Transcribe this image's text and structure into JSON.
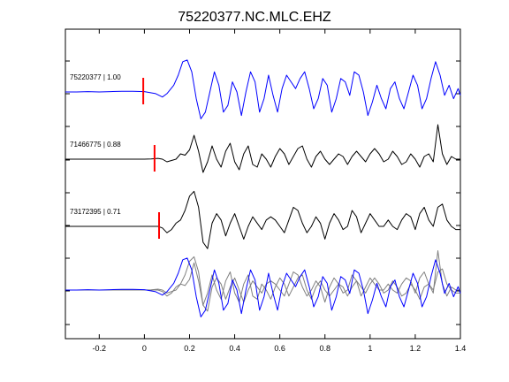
{
  "chart_data": {
    "type": "line",
    "title": "75220377.NC.MLC.EHZ",
    "xlabel": "",
    "ylabel": "",
    "xlim": [
      -0.35,
      1.4
    ],
    "x_ticks": [
      "-0.2",
      "0",
      "0.2",
      "0.4",
      "0.6",
      "0.8",
      "1",
      "1.2",
      "1.4"
    ],
    "x_tick_values": [
      -0.2,
      0,
      0.2,
      0.4,
      0.6,
      0.8,
      1.0,
      1.2,
      1.4
    ],
    "grid": false,
    "colors": {
      "master": "#0000ff",
      "neighbor": "#000000",
      "overlay_neighbor": "#808080",
      "pick": "#ff0000"
    },
    "traces": [
      {
        "label": "75220377 | 1.00",
        "color": "#0000ff",
        "pick": -0.005,
        "x": [
          -0.35,
          -0.3,
          -0.25,
          -0.2,
          -0.15,
          -0.1,
          -0.05,
          0.0,
          0.05,
          0.08,
          0.1,
          0.13,
          0.15,
          0.17,
          0.19,
          0.21,
          0.23,
          0.25,
          0.27,
          0.29,
          0.31,
          0.33,
          0.35,
          0.37,
          0.39,
          0.41,
          0.43,
          0.45,
          0.47,
          0.49,
          0.51,
          0.53,
          0.55,
          0.57,
          0.59,
          0.61,
          0.63,
          0.65,
          0.67,
          0.69,
          0.71,
          0.73,
          0.75,
          0.77,
          0.79,
          0.81,
          0.83,
          0.85,
          0.87,
          0.89,
          0.91,
          0.93,
          0.95,
          0.97,
          0.99,
          1.01,
          1.03,
          1.05,
          1.07,
          1.09,
          1.11,
          1.13,
          1.15,
          1.17,
          1.19,
          1.21,
          1.23,
          1.25,
          1.27,
          1.29,
          1.31,
          1.33,
          1.35,
          1.37,
          1.39,
          1.4
        ],
        "y": [
          0.0,
          0.0,
          0.01,
          0.0,
          0.01,
          0.02,
          0.02,
          0.01,
          -0.05,
          -0.15,
          -0.05,
          0.2,
          0.5,
          0.9,
          0.95,
          0.6,
          -0.2,
          -0.8,
          -0.6,
          0.0,
          0.6,
          0.2,
          -0.6,
          -0.4,
          0.3,
          0.0,
          -0.7,
          0.0,
          0.6,
          0.3,
          -0.6,
          -0.2,
          0.5,
          -0.1,
          -0.6,
          0.1,
          0.5,
          0.3,
          0.1,
          0.4,
          0.6,
          0.1,
          -0.5,
          -0.2,
          0.4,
          0.2,
          -0.6,
          -0.2,
          0.4,
          0.3,
          -0.1,
          0.6,
          0.5,
          0.0,
          -0.7,
          -0.3,
          0.2,
          -0.2,
          -0.5,
          0.1,
          0.3,
          -0.2,
          -0.5,
          0.0,
          0.5,
          0.2,
          -0.5,
          -0.2,
          0.4,
          0.9,
          0.5,
          -0.1,
          0.2,
          -0.2,
          0.1,
          -0.1
        ]
      },
      {
        "label": "71466775 | 0.88",
        "color": "#000000",
        "pick": 0.045,
        "x": [
          -0.35,
          -0.3,
          -0.25,
          -0.2,
          -0.15,
          -0.1,
          -0.05,
          0.0,
          0.03,
          0.06,
          0.08,
          0.1,
          0.12,
          0.14,
          0.16,
          0.18,
          0.2,
          0.22,
          0.24,
          0.26,
          0.28,
          0.3,
          0.32,
          0.34,
          0.36,
          0.38,
          0.4,
          0.42,
          0.44,
          0.46,
          0.48,
          0.5,
          0.52,
          0.54,
          0.56,
          0.58,
          0.6,
          0.62,
          0.64,
          0.66,
          0.68,
          0.7,
          0.72,
          0.74,
          0.76,
          0.78,
          0.8,
          0.82,
          0.84,
          0.86,
          0.88,
          0.9,
          0.92,
          0.94,
          0.96,
          0.98,
          1.0,
          1.02,
          1.04,
          1.06,
          1.08,
          1.1,
          1.12,
          1.14,
          1.16,
          1.18,
          1.2,
          1.22,
          1.24,
          1.26,
          1.28,
          1.3,
          1.32,
          1.34,
          1.36,
          1.38,
          1.4
        ],
        "y": [
          0.0,
          0.0,
          0.0,
          0.0,
          0.0,
          0.0,
          0.0,
          0.0,
          0.01,
          0.03,
          0.0,
          -0.1,
          -0.05,
          0.0,
          0.2,
          0.15,
          0.35,
          0.9,
          0.3,
          -0.5,
          -0.1,
          0.5,
          0.0,
          -0.3,
          0.3,
          0.6,
          -0.1,
          -0.4,
          0.2,
          0.5,
          -0.2,
          -0.3,
          0.2,
          0.0,
          -0.3,
          0.1,
          0.4,
          0.2,
          -0.2,
          0.1,
          0.4,
          0.5,
          0.0,
          -0.3,
          0.1,
          0.3,
          0.0,
          -0.2,
          0.0,
          0.2,
          0.1,
          -0.2,
          0.1,
          0.3,
          0.1,
          -0.1,
          0.2,
          0.4,
          0.2,
          -0.1,
          0.0,
          0.3,
          0.1,
          -0.2,
          -0.1,
          0.2,
          0.0,
          -0.3,
          0.1,
          0.2,
          -0.1,
          1.3,
          0.2,
          -0.2,
          0.1,
          0.0,
          0.0
        ]
      },
      {
        "label": "73172395 | 0.71",
        "color": "#000000",
        "pick": 0.065,
        "x": [
          -0.35,
          -0.3,
          -0.25,
          -0.2,
          -0.15,
          -0.1,
          -0.05,
          0.0,
          0.03,
          0.06,
          0.08,
          0.1,
          0.12,
          0.14,
          0.16,
          0.18,
          0.2,
          0.22,
          0.24,
          0.26,
          0.28,
          0.3,
          0.32,
          0.34,
          0.36,
          0.38,
          0.4,
          0.42,
          0.44,
          0.46,
          0.48,
          0.5,
          0.52,
          0.54,
          0.56,
          0.58,
          0.6,
          0.62,
          0.64,
          0.66,
          0.68,
          0.7,
          0.72,
          0.74,
          0.76,
          0.78,
          0.8,
          0.82,
          0.84,
          0.86,
          0.88,
          0.9,
          0.92,
          0.94,
          0.96,
          0.98,
          1.0,
          1.02,
          1.04,
          1.06,
          1.08,
          1.1,
          1.12,
          1.14,
          1.16,
          1.18,
          1.2,
          1.22,
          1.24,
          1.26,
          1.28,
          1.3,
          1.32,
          1.34,
          1.36,
          1.38,
          1.4
        ],
        "y": [
          0.0,
          0.0,
          0.0,
          0.0,
          0.0,
          0.0,
          0.0,
          0.0,
          0.0,
          0.0,
          -0.05,
          -0.2,
          -0.1,
          0.1,
          0.2,
          0.5,
          0.95,
          1.1,
          0.6,
          -0.5,
          -0.7,
          0.1,
          0.4,
          0.2,
          -0.3,
          0.1,
          0.4,
          0.0,
          -0.4,
          0.0,
          0.3,
          0.1,
          -0.1,
          0.2,
          0.3,
          0.2,
          0.0,
          -0.2,
          0.2,
          0.6,
          0.5,
          0.1,
          -0.2,
          0.0,
          0.3,
          0.1,
          -0.4,
          0.1,
          0.4,
          0.2,
          -0.1,
          0.0,
          0.5,
          0.3,
          -0.2,
          0.1,
          0.4,
          0.2,
          0.0,
          0.0,
          0.2,
          0.0,
          -0.1,
          0.2,
          0.4,
          0.3,
          -0.1,
          0.4,
          0.6,
          0.2,
          0.0,
          0.6,
          0.7,
          0.2,
          0.0,
          -0.1,
          -0.1
        ]
      }
    ]
  }
}
